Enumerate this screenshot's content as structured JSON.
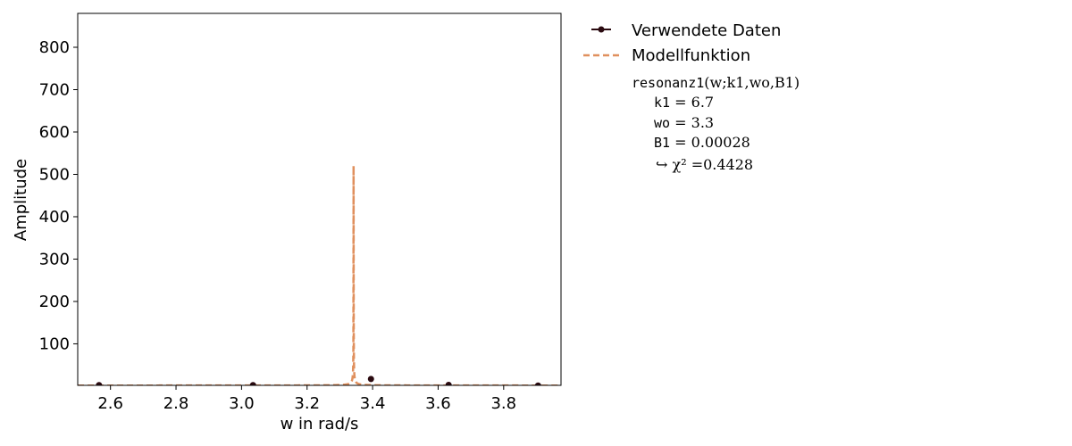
{
  "chart_data": {
    "type": "line",
    "xlabel": "w in rad/s",
    "ylabel": "Amplitude",
    "xlim": [
      2.5,
      3.975
    ],
    "ylim": [
      2,
      880
    ],
    "x_ticks": [
      2.6,
      2.8,
      3.0,
      3.2,
      3.4,
      3.6,
      3.8
    ],
    "x_tick_labels": [
      "2.6",
      "2.8",
      "3.0",
      "3.2",
      "3.4",
      "3.6",
      "3.8"
    ],
    "y_ticks": [
      100,
      200,
      300,
      400,
      500,
      600,
      700,
      800
    ],
    "y_tick_labels": [
      "100",
      "200",
      "300",
      "400",
      "500",
      "600",
      "700",
      "800"
    ],
    "grid": false,
    "legend_position": "outside-right",
    "series": [
      {
        "name": "Verwendete Daten",
        "kind": "scatter",
        "color": "#2a0a10",
        "x": [
          2.565,
          3.035,
          3.395,
          3.632,
          3.905
        ],
        "y": [
          2.5,
          2.5,
          17,
          3,
          1.5
        ]
      },
      {
        "name": "Modellfunktion",
        "kind": "line",
        "style": "dashed",
        "color": "#e0905e",
        "model": {
          "k1": 6.7,
          "wo": 3.3,
          "B1": 0.00028,
          "resonance_peak_w": 3.342
        }
      }
    ],
    "fit_info": {
      "function_name": "resonanz1",
      "function_args": "(w;k1,wo,B1)",
      "params": [
        {
          "name": "k1",
          "value": "6.7"
        },
        {
          "name": "wo",
          "value": "3.3"
        },
        {
          "name": "B1",
          "value": "0.00028"
        }
      ],
      "chi2_label": "↪ χ² =",
      "chi2_value": "0.4428"
    }
  }
}
